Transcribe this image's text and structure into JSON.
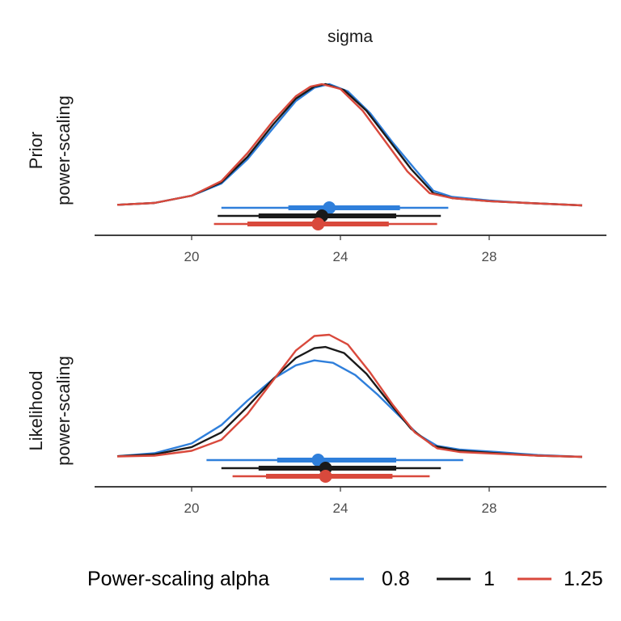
{
  "chart_data": {
    "type": "density",
    "facet_title": "sigma",
    "xticks": [
      20,
      24,
      28
    ],
    "xlim": [
      17.3,
      31.0
    ],
    "legend": {
      "title": "Power-scaling alpha",
      "position": "bottom",
      "entries": [
        {
          "label": "0.8",
          "color": "#2f7fdb"
        },
        {
          "label": "1",
          "color": "#1a1a1a"
        },
        {
          "label": "1.25",
          "color": "#d9493c"
        }
      ]
    },
    "panels": [
      {
        "label_line1": "Prior",
        "label_line2": "power-scaling",
        "series": [
          {
            "alpha": "0.8",
            "color": "#2f7fdb",
            "density": [
              [
                18.0,
                0.005
              ],
              [
                19.0,
                0.02
              ],
              [
                20.0,
                0.08
              ],
              [
                20.8,
                0.18
              ],
              [
                21.5,
                0.38
              ],
              [
                22.2,
                0.64
              ],
              [
                22.8,
                0.86
              ],
              [
                23.3,
                0.97
              ],
              [
                23.7,
                1.0
              ],
              [
                24.2,
                0.94
              ],
              [
                24.8,
                0.76
              ],
              [
                25.4,
                0.52
              ],
              [
                26.0,
                0.3
              ],
              [
                26.5,
                0.12
              ],
              [
                27.0,
                0.07
              ],
              [
                28.0,
                0.04
              ],
              [
                29.0,
                0.02
              ],
              [
                30.5,
                0.0
              ]
            ],
            "interval": {
              "median": 23.7,
              "inner": [
                22.6,
                25.6
              ],
              "outer": [
                20.8,
                26.9
              ]
            }
          },
          {
            "alpha": "1",
            "color": "#1a1a1a",
            "density": [
              [
                18.0,
                0.005
              ],
              [
                19.0,
                0.02
              ],
              [
                20.0,
                0.08
              ],
              [
                20.8,
                0.19
              ],
              [
                21.5,
                0.4
              ],
              [
                22.2,
                0.67
              ],
              [
                22.8,
                0.88
              ],
              [
                23.3,
                0.98
              ],
              [
                23.6,
                1.0
              ],
              [
                24.1,
                0.95
              ],
              [
                24.7,
                0.78
              ],
              [
                25.3,
                0.54
              ],
              [
                25.9,
                0.3
              ],
              [
                26.5,
                0.1
              ],
              [
                27.0,
                0.06
              ],
              [
                28.0,
                0.035
              ],
              [
                29.0,
                0.02
              ],
              [
                30.5,
                0.0
              ]
            ],
            "interval": {
              "median": 23.5,
              "inner": [
                21.8,
                25.5
              ],
              "outer": [
                20.7,
                26.7
              ]
            }
          },
          {
            "alpha": "1.25",
            "color": "#d9493c",
            "density": [
              [
                18.0,
                0.005
              ],
              [
                19.0,
                0.02
              ],
              [
                20.0,
                0.08
              ],
              [
                20.8,
                0.2
              ],
              [
                21.5,
                0.43
              ],
              [
                22.2,
                0.7
              ],
              [
                22.8,
                0.9
              ],
              [
                23.2,
                0.98
              ],
              [
                23.5,
                1.0
              ],
              [
                24.0,
                0.96
              ],
              [
                24.6,
                0.78
              ],
              [
                25.2,
                0.53
              ],
              [
                25.8,
                0.28
              ],
              [
                26.4,
                0.1
              ],
              [
                27.0,
                0.06
              ],
              [
                28.0,
                0.035
              ],
              [
                29.0,
                0.02
              ],
              [
                30.5,
                0.0
              ]
            ],
            "interval": {
              "median": 23.4,
              "inner": [
                21.5,
                25.3
              ],
              "outer": [
                20.6,
                26.6
              ]
            }
          }
        ]
      },
      {
        "label_line1": "Likelihood",
        "label_line2": "power-scaling",
        "series": [
          {
            "alpha": "0.8",
            "color": "#2f7fdb",
            "density": [
              [
                18.0,
                0.005
              ],
              [
                19.0,
                0.03
              ],
              [
                20.0,
                0.11
              ],
              [
                20.8,
                0.26
              ],
              [
                21.5,
                0.46
              ],
              [
                22.2,
                0.64
              ],
              [
                22.8,
                0.75
              ],
              [
                23.3,
                0.79
              ],
              [
                23.8,
                0.77
              ],
              [
                24.4,
                0.67
              ],
              [
                25.0,
                0.51
              ],
              [
                25.6,
                0.33
              ],
              [
                26.1,
                0.18
              ],
              [
                26.6,
                0.09
              ],
              [
                27.2,
                0.06
              ],
              [
                28.2,
                0.04
              ],
              [
                29.3,
                0.015
              ],
              [
                30.5,
                0.0
              ]
            ],
            "interval": {
              "median": 23.4,
              "inner": [
                22.3,
                25.5
              ],
              "outer": [
                20.4,
                27.3
              ]
            }
          },
          {
            "alpha": "1",
            "color": "#1a1a1a",
            "density": [
              [
                18.0,
                0.005
              ],
              [
                19.0,
                0.02
              ],
              [
                20.0,
                0.08
              ],
              [
                20.8,
                0.2
              ],
              [
                21.5,
                0.41
              ],
              [
                22.2,
                0.64
              ],
              [
                22.8,
                0.81
              ],
              [
                23.3,
                0.89
              ],
              [
                23.6,
                0.9
              ],
              [
                24.1,
                0.85
              ],
              [
                24.7,
                0.68
              ],
              [
                25.3,
                0.45
              ],
              [
                25.9,
                0.23
              ],
              [
                26.5,
                0.09
              ],
              [
                27.2,
                0.05
              ],
              [
                28.2,
                0.03
              ],
              [
                29.3,
                0.01
              ],
              [
                30.5,
                0.0
              ]
            ],
            "interval": {
              "median": 23.6,
              "inner": [
                21.8,
                25.5
              ],
              "outer": [
                20.8,
                26.7
              ]
            }
          },
          {
            "alpha": "1.25",
            "color": "#d9493c",
            "density": [
              [
                18.0,
                0.003
              ],
              [
                19.0,
                0.01
              ],
              [
                20.0,
                0.05
              ],
              [
                20.8,
                0.14
              ],
              [
                21.5,
                0.35
              ],
              [
                22.2,
                0.63
              ],
              [
                22.8,
                0.87
              ],
              [
                23.3,
                0.99
              ],
              [
                23.7,
                1.0
              ],
              [
                24.2,
                0.92
              ],
              [
                24.8,
                0.69
              ],
              [
                25.4,
                0.43
              ],
              [
                26.0,
                0.2
              ],
              [
                26.6,
                0.07
              ],
              [
                27.2,
                0.04
              ],
              [
                28.2,
                0.025
              ],
              [
                29.3,
                0.01
              ],
              [
                30.5,
                0.0
              ]
            ],
            "interval": {
              "median": 23.6,
              "inner": [
                22.0,
                25.4
              ],
              "outer": [
                21.1,
                26.4
              ]
            }
          }
        ]
      }
    ]
  }
}
